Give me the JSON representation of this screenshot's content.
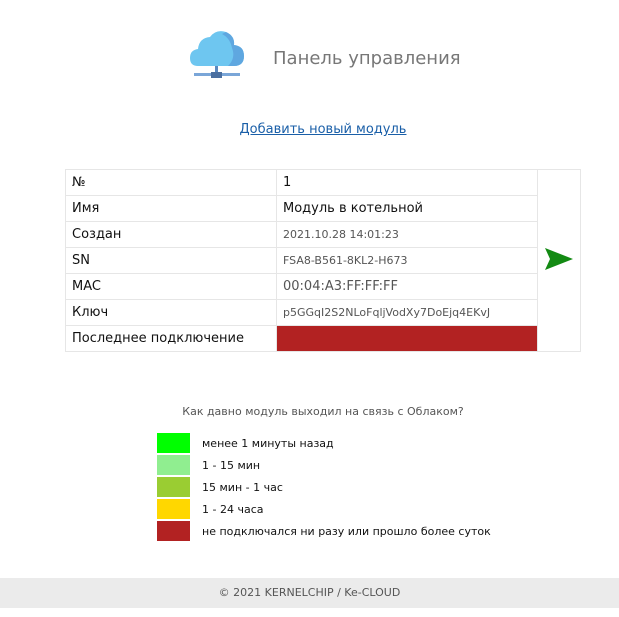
{
  "header": {
    "title": "Панель управления",
    "icon": "cloud-network-icon"
  },
  "add_module_link": "Добавить новый модуль",
  "module": {
    "rows": [
      {
        "label": "№",
        "value": "1"
      },
      {
        "label": "Имя",
        "value": "Модуль в котельной"
      },
      {
        "label": "Создан",
        "value": "2021.10.28 14:01:23"
      },
      {
        "label": "SN",
        "value": "FSA8-B561-8KL2-H673"
      },
      {
        "label": "MAC",
        "value": "00:04:A3:FF:FF:FF"
      },
      {
        "label": "Ключ",
        "value": "p5GGqI2S2NLoFqljVodXy7DoEjq4EKvJ"
      },
      {
        "label": "Последнее подключение",
        "value": ""
      }
    ],
    "status_color": "#b22222",
    "open_icon": "green-arrow-right-icon",
    "arrow_color": "#138a13"
  },
  "legend": {
    "question": "Как давно модуль выходил на связь с Облаком?",
    "items": [
      {
        "color": "#00ff00",
        "label": "менее 1 минуты назад"
      },
      {
        "color": "#90ee90",
        "label": "1 - 15 мин"
      },
      {
        "color": "#9acd32",
        "label": "15 мин - 1 час"
      },
      {
        "color": "#ffd700",
        "label": "1 - 24 часа"
      },
      {
        "color": "#b22222",
        "label": "не подключался ни разу или прошло более суток"
      }
    ]
  },
  "footer": "© 2021 KERNELCHIP / Ke-CLOUD"
}
